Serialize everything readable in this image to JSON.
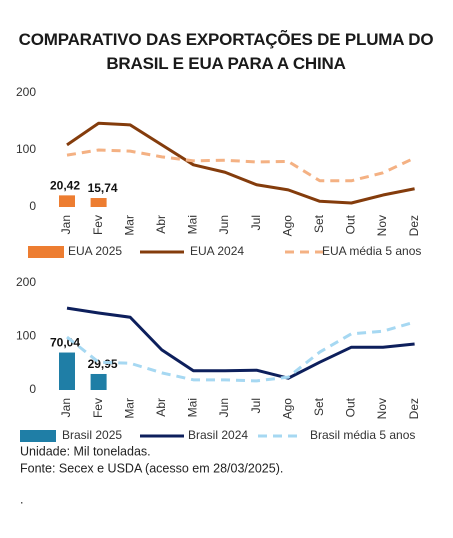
{
  "title": "COMPARATIVO DAS EXPORTAÇÕES DE PLUMA DO BRASIL E EUA PARA A CHINA",
  "chart_data": [
    {
      "type": "combo",
      "categories": [
        "Jan",
        "Fev",
        "Mar",
        "Abr",
        "Mai",
        "Jun",
        "Jul",
        "Ago",
        "Set",
        "Out",
        "Nov",
        "Dez"
      ],
      "ylim": [
        0,
        200
      ],
      "yticks": [
        0,
        100,
        200
      ],
      "series": [
        {
          "name": "EUA 2025",
          "type": "bar",
          "color": "#ed7d31",
          "values": [
            20.42,
            15.74,
            null,
            null,
            null,
            null,
            null,
            null,
            null,
            null,
            null,
            null
          ],
          "value_labels": [
            "20,42",
            "15,74",
            null,
            null,
            null,
            null,
            null,
            null,
            null,
            null,
            null,
            null
          ]
        },
        {
          "name": "EUA 2024",
          "type": "line",
          "color": "#843c0c",
          "values": [
            109,
            147,
            144,
            109,
            74,
            61,
            39,
            30,
            10,
            7,
            21,
            32
          ]
        },
        {
          "name": "EUA média 5 anos",
          "type": "line",
          "dashed": true,
          "color": "#f4b183",
          "values": [
            91,
            100,
            98,
            88,
            81,
            82,
            79,
            80,
            46,
            46,
            60,
            86
          ]
        }
      ]
    },
    {
      "type": "combo",
      "categories": [
        "Jan",
        "Fev",
        "Mar",
        "Abr",
        "Mai",
        "Jun",
        "Jul",
        "Ago",
        "Set",
        "Out",
        "Nov",
        "Dez"
      ],
      "ylim": [
        0,
        200
      ],
      "yticks": [
        0,
        100,
        200
      ],
      "series": [
        {
          "name": "Brasil 2025",
          "type": "bar",
          "color": "#1f7ea6",
          "values": [
            70.04,
            29.95,
            null,
            null,
            null,
            null,
            null,
            null,
            null,
            null,
            null,
            null
          ],
          "value_labels": [
            "70,04",
            "29,95",
            null,
            null,
            null,
            null,
            null,
            null,
            null,
            null,
            null,
            null
          ]
        },
        {
          "name": "Brasil 2024",
          "type": "line",
          "color": "#0d1f5c",
          "values": [
            153,
            144,
            136,
            75,
            36,
            36,
            37,
            22,
            52,
            80,
            80,
            86
          ]
        },
        {
          "name": "Brasil média 5 anos",
          "type": "line",
          "dashed": true,
          "color": "#a6d8f2",
          "values": [
            99,
            52,
            50,
            32,
            19,
            19,
            17,
            24,
            71,
            105,
            110,
            127
          ]
        }
      ]
    }
  ],
  "notes": [
    "Unidade: Mil toneladas.",
    "Fonte: Secex e USDA (acesso em 28/03/2025).",
    "."
  ]
}
